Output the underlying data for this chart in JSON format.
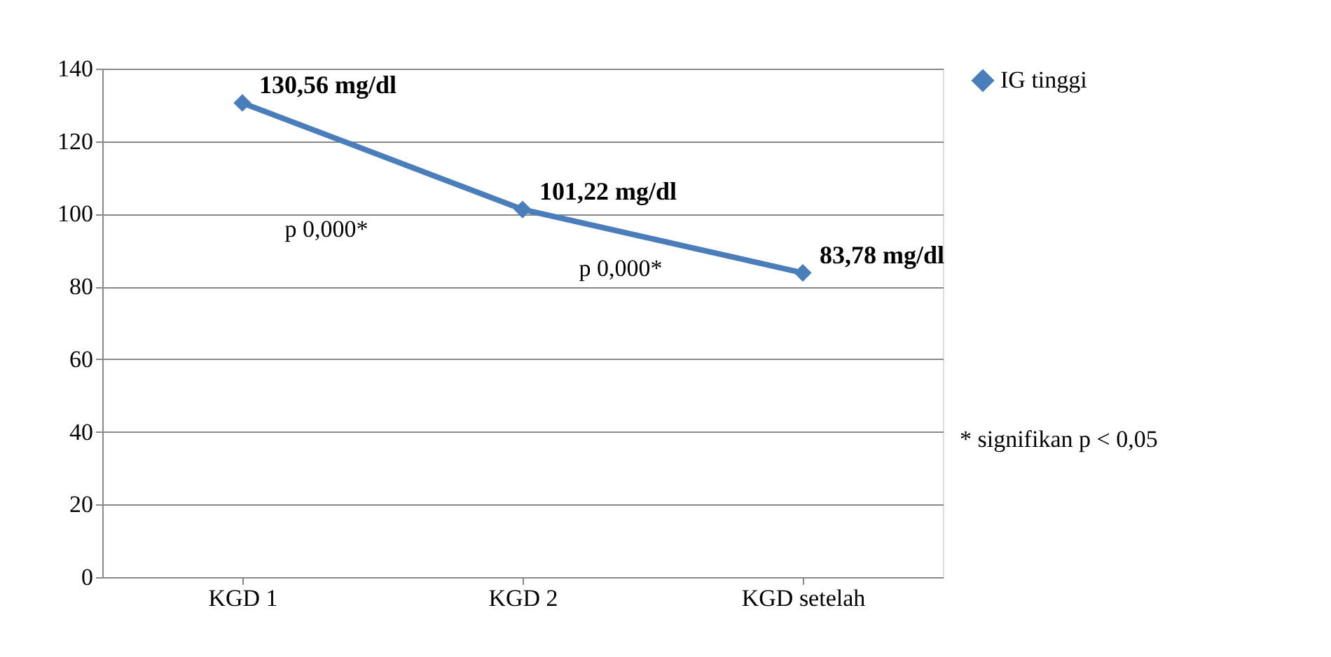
{
  "chart_data": {
    "type": "line",
    "categories": [
      "KGD 1",
      "KGD 2",
      "KGD setelah"
    ],
    "series": [
      {
        "name": "IG tinggi",
        "color": "#4a7ebb",
        "values": [
          130.56,
          101.22,
          83.78
        ],
        "value_labels": [
          "130,56 mg/dl",
          "101,22 mg/dl",
          "83,78 mg/dl"
        ]
      }
    ],
    "ylim": [
      0,
      140
    ],
    "yticks": [
      0,
      20,
      40,
      60,
      80,
      100,
      120,
      140
    ],
    "grid": "y",
    "legend": "right",
    "marker": "diamond",
    "line_style": "solid",
    "annotations": [
      "p 0,000*",
      "p 0,000*",
      "* signifikan p < 0,05"
    ]
  }
}
